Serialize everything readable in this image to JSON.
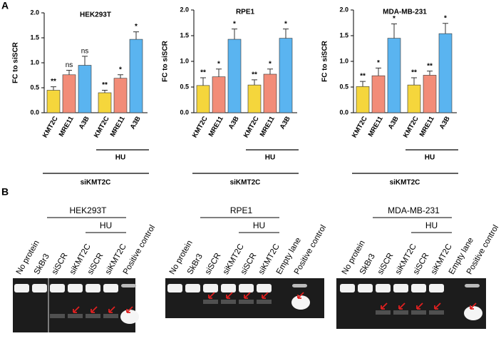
{
  "panel_labels": [
    "A",
    "B"
  ],
  "chart_data": [
    {
      "type": "bar",
      "title": "HEK293T",
      "y_label": "FC to siSCR",
      "categories": [
        "KMT2C",
        "MRE11",
        "A3B",
        "KMT2C",
        "MRE11",
        "A3B"
      ],
      "values": [
        0.45,
        0.76,
        0.95,
        0.4,
        0.69,
        1.47
      ],
      "errors": [
        0.07,
        0.09,
        0.18,
        0.05,
        0.07,
        0.15
      ],
      "annotations": [
        "**",
        "ns",
        "ns",
        "**",
        "*",
        "*"
      ],
      "colors": [
        "#f5d63c",
        "#f28c78",
        "#5ab4f0",
        "#f5d63c",
        "#f28c78",
        "#5ab4f0"
      ],
      "hu_label": "HU",
      "group_label": "siKMT2C",
      "ylim": [
        0,
        2
      ],
      "yticks": [
        {
          "value": 0,
          "label": "0.0"
        },
        {
          "value": 0.5,
          "label": "0.5"
        },
        {
          "value": 1,
          "label": "1.0"
        },
        {
          "value": 1.5,
          "label": "1.5"
        },
        {
          "value": 2,
          "label": "2.0"
        }
      ]
    },
    {
      "type": "bar",
      "title": "RPE1",
      "y_label": "FC to siSCR",
      "categories": [
        "KMT2C",
        "MRE11",
        "A3B",
        "KMT2C",
        "MRE11",
        "A3B"
      ],
      "values": [
        0.53,
        0.7,
        1.43,
        0.54,
        0.75,
        1.45
      ],
      "errors": [
        0.15,
        0.15,
        0.2,
        0.1,
        0.1,
        0.18
      ],
      "annotations": [
        "**",
        "*",
        "*",
        "**",
        "*",
        "*"
      ],
      "colors": [
        "#f5d63c",
        "#f28c78",
        "#5ab4f0",
        "#f5d63c",
        "#f28c78",
        "#5ab4f0"
      ],
      "hu_label": "HU",
      "group_label": "siKMT2C",
      "ylim": [
        0,
        2
      ],
      "yticks": [
        {
          "value": 0,
          "label": "0.0"
        },
        {
          "value": 0.5,
          "label": "0.5"
        },
        {
          "value": 1,
          "label": "1.0"
        },
        {
          "value": 1.5,
          "label": "1.5"
        },
        {
          "value": 2,
          "label": "2.0"
        }
      ]
    },
    {
      "type": "bar",
      "title": "MDA-MB-231",
      "y_label": "FC to siSCR",
      "categories": [
        "KMT2C",
        "MRE11",
        "A3B",
        "KMT2C",
        "MRE11",
        "A3B"
      ],
      "values": [
        0.51,
        0.72,
        1.45,
        0.54,
        0.73,
        1.54
      ],
      "errors": [
        0.1,
        0.15,
        0.28,
        0.14,
        0.08,
        0.2
      ],
      "annotations": [
        "**",
        "*",
        "*",
        "**",
        "**",
        "*"
      ],
      "colors": [
        "#f5d63c",
        "#f28c78",
        "#5ab4f0",
        "#f5d63c",
        "#f28c78",
        "#5ab4f0"
      ],
      "hu_label": "HU",
      "group_label": "siKMT2C",
      "ylim": [
        0,
        2
      ],
      "yticks": [
        {
          "value": 0,
          "label": "0.0"
        },
        {
          "value": 0.5,
          "label": "0.5"
        },
        {
          "value": 1,
          "label": "1.0"
        },
        {
          "value": 1.5,
          "label": "1.5"
        },
        {
          "value": 2,
          "label": "2.0"
        }
      ]
    }
  ],
  "gels": [
    {
      "title": "HEK293T",
      "hu_label": "HU",
      "lanes": [
        "No protein",
        "SkBr3",
        "siSCR",
        "siKMT2C",
        "siSCR",
        "siKMT2C",
        "Positive control"
      ]
    },
    {
      "title": "RPE1",
      "hu_label": "HU",
      "lanes": [
        "No protein",
        "SkBr3",
        "siSCR",
        "siKMT2C",
        "siSCR",
        "siKMT2C",
        "Empty lane",
        "Positive control"
      ]
    },
    {
      "title": "MDA-MB-231",
      "hu_label": "HU",
      "lanes": [
        "No protein",
        "SkBr3",
        "siSCR",
        "siKMT2C",
        "siSCR",
        "siKMT2C",
        "Empty lane",
        "Positive control"
      ]
    }
  ]
}
